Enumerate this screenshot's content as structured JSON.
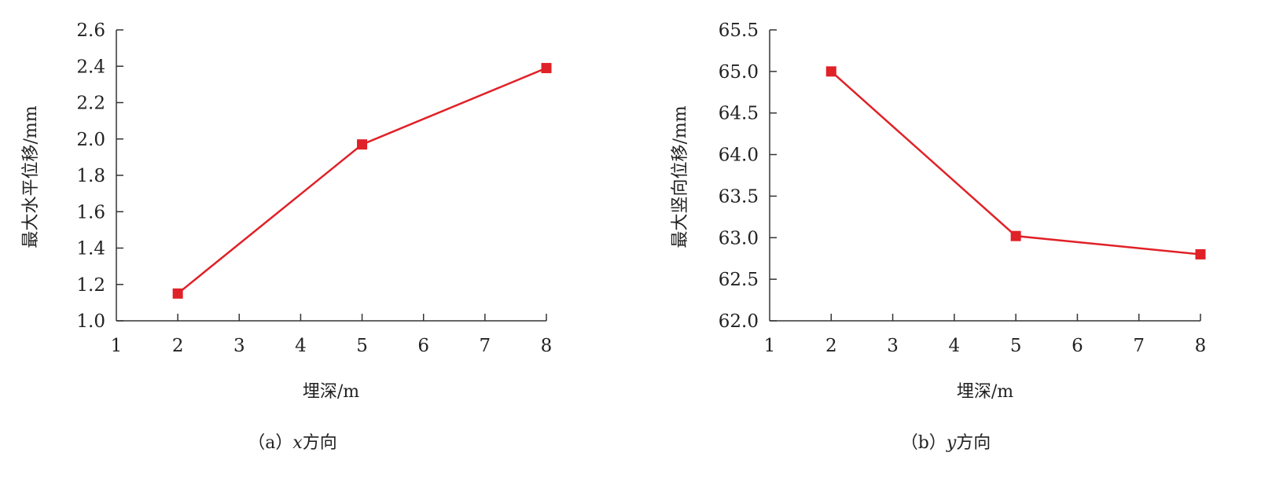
{
  "chart_data": [
    {
      "type": "line",
      "caption": "（a）x方向",
      "caption_prefix": "（a）",
      "caption_var": "x",
      "caption_suffix": "方向",
      "xlabel": "埋深/m",
      "ylabel": "最大水平位移/mm",
      "xlim": [
        1,
        8
      ],
      "ylim": [
        1.0,
        2.6
      ],
      "xticks": [
        "1",
        "2",
        "3",
        "4",
        "5",
        "6",
        "7",
        "8"
      ],
      "yticks": [
        "1.0",
        "1.2",
        "1.4",
        "1.6",
        "1.8",
        "2.0",
        "2.2",
        "2.4",
        "2.6"
      ],
      "grid": false,
      "series": [
        {
          "x": [
            2,
            5,
            8
          ],
          "y": [
            1.15,
            1.97,
            2.39
          ],
          "color": "#e02127",
          "marker": "square"
        }
      ]
    },
    {
      "type": "line",
      "caption": "（b）y方向",
      "caption_prefix": "（b）",
      "caption_var": "y",
      "caption_suffix": "方向",
      "xlabel": "埋深/m",
      "ylabel": "最大竖向位移/mm",
      "xlim": [
        1,
        8
      ],
      "ylim": [
        62.0,
        65.5
      ],
      "xticks": [
        "1",
        "2",
        "3",
        "4",
        "5",
        "6",
        "7",
        "8"
      ],
      "yticks": [
        "62.0",
        "62.5",
        "63.0",
        "63.5",
        "64.0",
        "64.5",
        "65.0",
        "65.5"
      ],
      "grid": false,
      "series": [
        {
          "x": [
            2,
            5,
            8
          ],
          "y": [
            65.0,
            63.02,
            62.8
          ],
          "color": "#e02127",
          "marker": "square"
        }
      ]
    }
  ]
}
